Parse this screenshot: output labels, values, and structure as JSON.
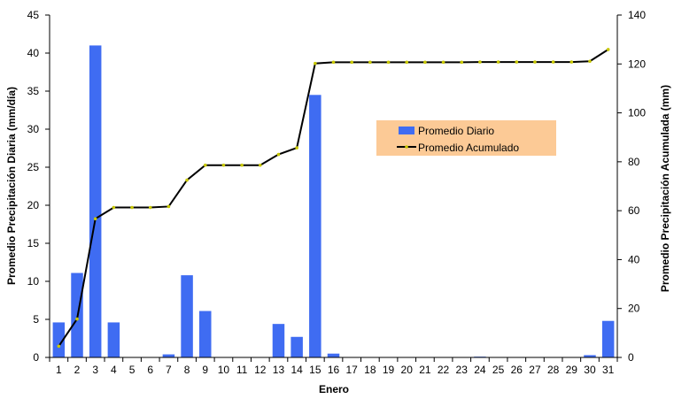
{
  "chart_data": {
    "type": "bar+line",
    "xlabel": "Enero",
    "ylabel_left": "Promedio Precipitación Diaria (mm/día)",
    "ylabel_right": "Promedio Precipitación Acumulada (mm)",
    "ylim_left": [
      0,
      45
    ],
    "ylim_right": [
      0,
      140
    ],
    "yticks_left": [
      "0",
      "5",
      "10",
      "15",
      "20",
      "25",
      "30",
      "35",
      "40",
      "45"
    ],
    "yticks_right": [
      "0",
      "20",
      "40",
      "60",
      "80",
      "100",
      "120",
      "140"
    ],
    "categories": [
      "1",
      "2",
      "3",
      "4",
      "5",
      "6",
      "7",
      "8",
      "9",
      "10",
      "11",
      "12",
      "13",
      "14",
      "15",
      "16",
      "17",
      "18",
      "19",
      "20",
      "21",
      "22",
      "23",
      "24",
      "25",
      "26",
      "27",
      "28",
      "29",
      "30",
      "31"
    ],
    "grid": false,
    "legend": {
      "position": "center-right",
      "background": "#FCCA96"
    },
    "series": [
      {
        "name": "Promedio Diario",
        "type": "bar",
        "axis": "left",
        "color": "#3F6CF2",
        "values": [
          4.6,
          11.1,
          41.0,
          4.6,
          0,
          0,
          0.4,
          10.8,
          6.1,
          0,
          0,
          0,
          4.4,
          2.7,
          34.5,
          0.5,
          0,
          0,
          0,
          0,
          0,
          0,
          0,
          0.1,
          0,
          0,
          0,
          0,
          0,
          0.3,
          4.8
        ]
      },
      {
        "name": "Promedio Acumulado",
        "type": "line",
        "axis": "right",
        "color": "#000000",
        "marker_color": "#C8C800",
        "values": [
          4.6,
          15.7,
          56.7,
          61.3,
          61.3,
          61.3,
          61.7,
          72.5,
          78.6,
          78.6,
          78.6,
          78.6,
          83.0,
          85.7,
          120.2,
          120.7,
          120.7,
          120.7,
          120.7,
          120.7,
          120.7,
          120.7,
          120.7,
          120.8,
          120.8,
          120.8,
          120.8,
          120.8,
          120.8,
          121.1,
          125.9
        ]
      }
    ]
  }
}
